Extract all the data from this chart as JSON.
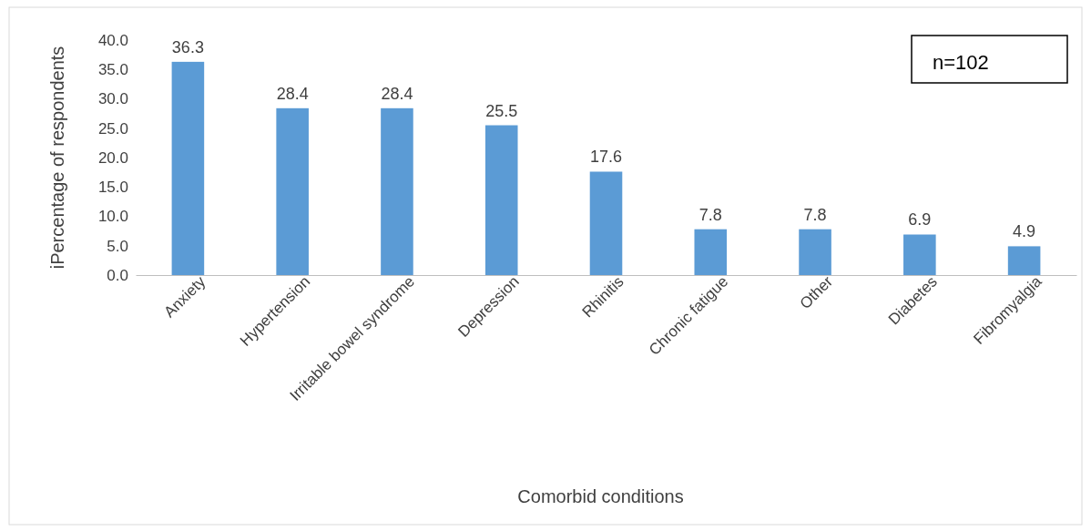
{
  "chart_data": {
    "type": "bar",
    "ylabel": "iPercentage of respondents",
    "xlabel": "Comorbid conditions",
    "categories": [
      "Anxiety",
      "Hypertension",
      "Irritable bowel syndrome",
      "Depression",
      "Rhinitis",
      "Chronic fatigue",
      "Other",
      "Diabetes",
      "Fibromyalgia"
    ],
    "values": [
      36.3,
      28.4,
      28.4,
      25.5,
      17.6,
      7.8,
      7.8,
      6.9,
      4.9
    ],
    "color": "#5b9bd5",
    "data_labels": true,
    "ylim": [
      0,
      40
    ],
    "yticks": [
      {
        "value": 0,
        "label": "0.0"
      },
      {
        "value": 5,
        "label": "5.0"
      },
      {
        "value": 10,
        "label": "10.0"
      },
      {
        "value": 15,
        "label": "15.0"
      },
      {
        "value": 20,
        "label": "20.0"
      },
      {
        "value": 25,
        "label": "25.0"
      },
      {
        "value": 30,
        "label": "30.0"
      },
      {
        "value": 35,
        "label": "35.0"
      },
      {
        "value": 40,
        "label": "40.0"
      }
    ],
    "grid": false,
    "annotations": [
      "n=102"
    ]
  }
}
